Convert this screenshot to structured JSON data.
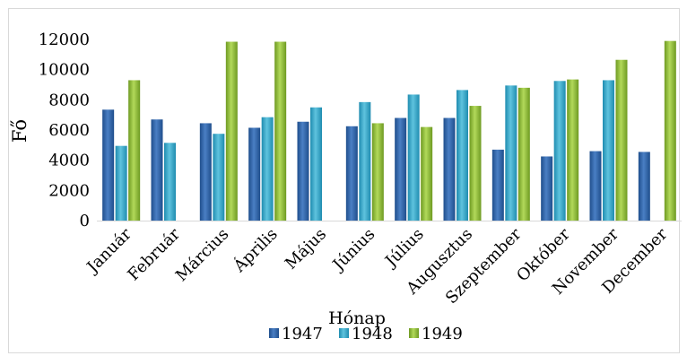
{
  "chart_data": {
    "type": "bar",
    "title": "",
    "xlabel": "Hónap",
    "ylabel": "Fő",
    "ylim": [
      0,
      12000
    ],
    "yticks": [
      0,
      2000,
      4000,
      6000,
      8000,
      10000,
      12000
    ],
    "grid": false,
    "legend_position": "bottom",
    "categories": [
      "Január",
      "Február",
      "Március",
      "Április",
      "Május",
      "Június",
      "Július",
      "Augusztus",
      "Szeptember",
      "Október",
      "November",
      "December"
    ],
    "series": [
      {
        "name": "1947",
        "color": "#2e5f9e",
        "values": [
          7350,
          6700,
          6450,
          6150,
          6550,
          6250,
          6800,
          6800,
          4700,
          4250,
          4600,
          4550
        ]
      },
      {
        "name": "1948",
        "color": "#3aa3c4",
        "values": [
          4950,
          5150,
          5750,
          6850,
          7500,
          7850,
          8350,
          8650,
          8950,
          9250,
          9300,
          null
        ]
      },
      {
        "name": "1949",
        "color": "#8cb33c",
        "values": [
          9300,
          null,
          11850,
          11850,
          null,
          6450,
          6200,
          7600,
          8800,
          9350,
          10650,
          11900
        ]
      }
    ]
  }
}
